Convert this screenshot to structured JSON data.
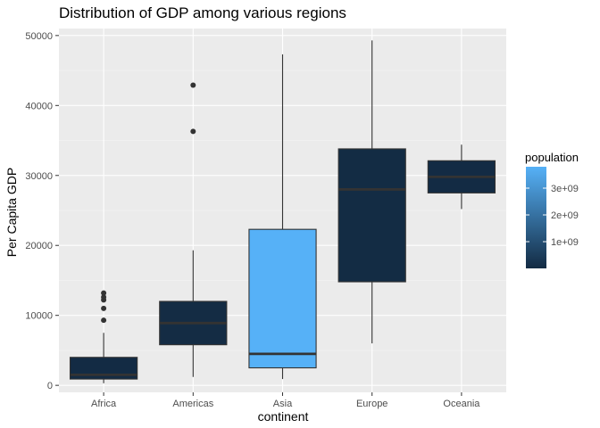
{
  "chart_data": {
    "type": "boxplot",
    "title": "Distribution of GDP among various regions",
    "xlabel": "continent",
    "ylabel": "Per Capita GDP",
    "ylim": [
      -1000,
      51000
    ],
    "yticks": [
      0,
      10000,
      20000,
      30000,
      40000,
      50000
    ],
    "ytick_labels": [
      "0",
      "10000",
      "20000",
      "30000",
      "40000",
      "50000"
    ],
    "categories": [
      "Africa",
      "Americas",
      "Asia",
      "Europe",
      "Oceania"
    ],
    "boxes": [
      {
        "category": "Africa",
        "min": 300,
        "q1": 900,
        "median": 1500,
        "q3": 4000,
        "max": 7500,
        "outliers": [
          9300,
          11000,
          12200,
          12600,
          13200
        ],
        "population": 15000000
      },
      {
        "category": "Americas",
        "min": 1200,
        "q1": 5800,
        "median": 8900,
        "q3": 12000,
        "max": 19300,
        "outliers": [
          36300,
          42900
        ],
        "population": 30000000
      },
      {
        "category": "Asia",
        "min": 900,
        "q1": 2500,
        "median": 4500,
        "q3": 22300,
        "max": 47300,
        "outliers": [],
        "population": 3800000000
      },
      {
        "category": "Europe",
        "min": 6000,
        "q1": 14800,
        "median": 28000,
        "q3": 33800,
        "max": 49300,
        "outliers": [],
        "population": 20000000
      },
      {
        "category": "Oceania",
        "min": 25200,
        "q1": 27500,
        "median": 29800,
        "q3": 32100,
        "max": 34400,
        "outliers": [],
        "population": 12000000
      }
    ],
    "legend": {
      "title": "population",
      "placement": "right",
      "min": 1000000,
      "max": 3800000000,
      "ticks": [
        1000000000,
        2000000000,
        3000000000
      ],
      "tick_labels": [
        "1e+09",
        "2e+09",
        "3e+09"
      ],
      "low_color": "#132B43",
      "high_color": "#56B1F7"
    },
    "grid": true,
    "panel_background": "#EBEBEB"
  }
}
